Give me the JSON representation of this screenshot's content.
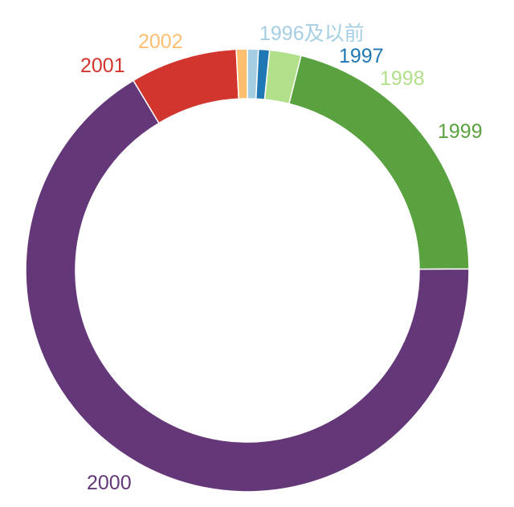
{
  "chart_data": {
    "type": "pie",
    "title": "",
    "donut": true,
    "categories": [
      "1996及以前",
      "1997",
      "1998",
      "1999",
      "2000",
      "2001",
      "2002"
    ],
    "values": [
      0.8,
      0.8,
      2.3,
      21.0,
      66.5,
      7.8,
      0.8
    ],
    "colors": [
      "#a6cee3",
      "#1f78b4",
      "#b2df8a",
      "#5aa13f",
      "#643878",
      "#d2342e",
      "#fdbf6f"
    ],
    "legend": "none",
    "start_angle_deg": 0,
    "direction": "clockwise"
  }
}
